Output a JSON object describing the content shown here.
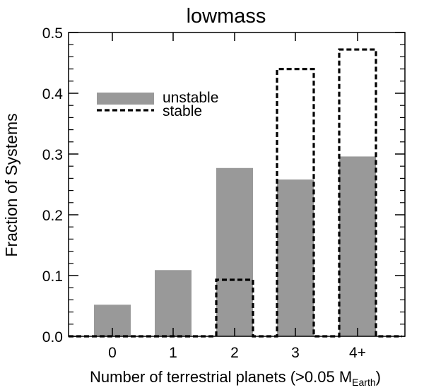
{
  "chart_data": {
    "type": "bar",
    "title": "lowmass",
    "xlabel_main": "Number of terrestrial planets (>0.05 M",
    "xlabel_sub": "Earth",
    "xlabel_close": ")",
    "ylabel": "Fraction of Systems",
    "categories": [
      "0",
      "1",
      "2",
      "3",
      "4+"
    ],
    "ylim": [
      0,
      0.5
    ],
    "yticks": [
      "0.0",
      "0.1",
      "0.2",
      "0.3",
      "0.4",
      "0.5"
    ],
    "series": [
      {
        "name": "unstable",
        "style": "filled",
        "color": "#999999",
        "values": [
          0.052,
          0.109,
          0.277,
          0.258,
          0.296
        ]
      },
      {
        "name": "stable",
        "style": "dashed-outline",
        "color": "#000000",
        "values": [
          0.0,
          0.0,
          0.093,
          0.44,
          0.472
        ]
      }
    ],
    "legend": {
      "placement": "upper-left",
      "entries": [
        "unstable",
        "stable"
      ]
    }
  }
}
